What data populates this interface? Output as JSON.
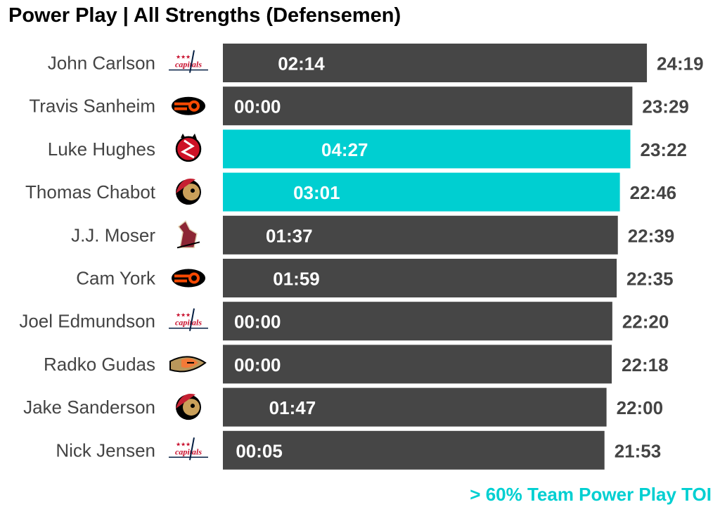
{
  "title": "Power Play | All Strengths (Defensemen)",
  "footnote": "> 60% Team Power Play TOI",
  "colors": {
    "bar": "#464646",
    "highlight": "#00cfd1",
    "bar_text": "#ffffff",
    "name_text": "#444444",
    "total_text": "#444444"
  },
  "teams": {
    "capitals": {
      "icon": "capitals-logo-icon",
      "text": "capitals",
      "color": "#c8102e",
      "accent": "#041e42"
    },
    "flyers": {
      "icon": "flyers-logo-icon",
      "color": "#f74902",
      "accent": "#000000"
    },
    "devils": {
      "icon": "devils-logo-icon",
      "color": "#ce1126",
      "accent": "#000000"
    },
    "senators": {
      "icon": "senators-logo-icon",
      "color": "#c52032",
      "accent": "#000000"
    },
    "coyotes": {
      "icon": "coyotes-logo-icon",
      "color": "#8c2633",
      "accent": "#e2d6b5"
    },
    "ducks": {
      "icon": "ducks-logo-icon",
      "color": "#b9975b",
      "accent": "#f47a38"
    }
  },
  "chart_data": {
    "type": "bar",
    "orientation": "horizontal",
    "title": "Power Play | All Strengths (Defensemen)",
    "xlim": [
      0,
      25
    ],
    "value_unit": "minutes",
    "categories": [
      "John Carlson",
      "Travis Sanheim",
      "Luke Hughes",
      "Thomas Chabot",
      "J.J. Moser",
      "Cam York",
      "Joel Edmundson",
      "Radko Gudas",
      "Jake Sanderson",
      "Nick Jensen"
    ],
    "series": [
      {
        "values": [
          24.317,
          23.483,
          23.367,
          22.767,
          22.65,
          22.583,
          22.333,
          22.3,
          22.0,
          21.883
        ]
      },
      {
        "values": [
          2.233,
          0.0,
          4.45,
          3.017,
          1.617,
          1.983,
          0.0,
          0.0,
          1.783,
          0.083
        ]
      }
    ],
    "rows": [
      {
        "name": "John Carlson",
        "team": "capitals",
        "all_strengths": "24:19",
        "power_play": "02:14",
        "highlight": false
      },
      {
        "name": "Travis Sanheim",
        "team": "flyers",
        "all_strengths": "23:29",
        "power_play": "00:00",
        "highlight": false
      },
      {
        "name": "Luke Hughes",
        "team": "devils",
        "all_strengths": "23:22",
        "power_play": "04:27",
        "highlight": true
      },
      {
        "name": "Thomas Chabot",
        "team": "senators",
        "all_strengths": "22:46",
        "power_play": "03:01",
        "highlight": true
      },
      {
        "name": "J.J. Moser",
        "team": "coyotes",
        "all_strengths": "22:39",
        "power_play": "01:37",
        "highlight": false
      },
      {
        "name": "Cam York",
        "team": "flyers",
        "all_strengths": "22:35",
        "power_play": "01:59",
        "highlight": false
      },
      {
        "name": "Joel Edmundson",
        "team": "capitals",
        "all_strengths": "22:20",
        "power_play": "00:00",
        "highlight": false
      },
      {
        "name": "Radko Gudas",
        "team": "ducks",
        "all_strengths": "22:18",
        "power_play": "00:00",
        "highlight": false
      },
      {
        "name": "Jake Sanderson",
        "team": "senators",
        "all_strengths": "22:00",
        "power_play": "01:47",
        "highlight": false
      },
      {
        "name": "Nick Jensen",
        "team": "capitals",
        "all_strengths": "21:53",
        "power_play": "00:05",
        "highlight": false
      }
    ],
    "legend": "bottom-right",
    "grid": false
  }
}
